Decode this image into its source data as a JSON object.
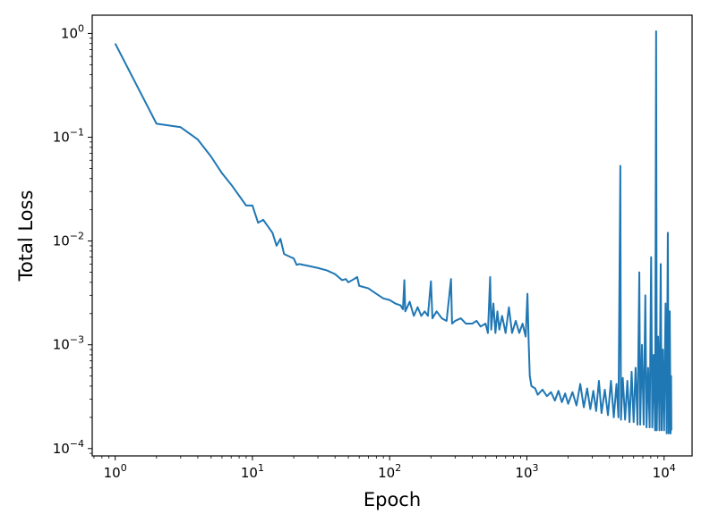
{
  "chart_data": {
    "type": "line",
    "title": "",
    "xlabel": "Epoch",
    "ylabel": "Total Loss",
    "xscale": "log",
    "yscale": "log",
    "xlim": [
      0.68,
      16000
    ],
    "ylim": [
      8.5e-05,
      1.5
    ],
    "grid": false,
    "line_color": "#1f77b4",
    "x_ticks": [
      {
        "value": 1,
        "base": "10",
        "exp": "0"
      },
      {
        "value": 10,
        "base": "10",
        "exp": "1"
      },
      {
        "value": 100,
        "base": "10",
        "exp": "2"
      },
      {
        "value": 1000,
        "base": "10",
        "exp": "3"
      },
      {
        "value": 10000,
        "base": "10",
        "exp": "4"
      }
    ],
    "y_ticks": [
      {
        "value": 1,
        "base": "10",
        "exp": "0"
      },
      {
        "value": 0.1,
        "base": "10",
        "exp": "−1"
      },
      {
        "value": 0.01,
        "base": "10",
        "exp": "−2"
      },
      {
        "value": 0.001,
        "base": "10",
        "exp": "−3"
      },
      {
        "value": 0.0001,
        "base": "10",
        "exp": "−4"
      }
    ],
    "series": [
      {
        "points": [
          [
            1,
            0.8
          ],
          [
            2,
            0.135
          ],
          [
            3,
            0.125
          ],
          [
            4,
            0.095
          ],
          [
            5,
            0.065
          ],
          [
            6,
            0.045
          ],
          [
            7,
            0.035
          ],
          [
            9,
            0.022
          ],
          [
            10,
            0.022
          ],
          [
            11,
            0.015
          ],
          [
            12,
            0.016
          ],
          [
            14,
            0.012
          ],
          [
            15,
            0.009
          ],
          [
            16,
            0.0105
          ],
          [
            17,
            0.0075
          ],
          [
            19,
            0.007
          ],
          [
            20,
            0.0068
          ],
          [
            21,
            0.0059
          ],
          [
            22,
            0.006
          ],
          [
            25,
            0.0058
          ],
          [
            30,
            0.0055
          ],
          [
            35,
            0.0052
          ],
          [
            40,
            0.0048
          ],
          [
            45,
            0.0042
          ],
          [
            48,
            0.0043
          ],
          [
            50,
            0.004
          ],
          [
            55,
            0.0043
          ],
          [
            58,
            0.0045
          ],
          [
            60,
            0.0037
          ],
          [
            70,
            0.0035
          ],
          [
            80,
            0.0031
          ],
          [
            90,
            0.0028
          ],
          [
            100,
            0.0027
          ],
          [
            110,
            0.0025
          ],
          [
            120,
            0.0024
          ],
          [
            125,
            0.0022
          ],
          [
            128,
            0.0042
          ],
          [
            130,
            0.0021
          ],
          [
            140,
            0.0026
          ],
          [
            150,
            0.0019
          ],
          [
            160,
            0.0023
          ],
          [
            170,
            0.0019
          ],
          [
            180,
            0.0021
          ],
          [
            190,
            0.0019
          ],
          [
            200,
            0.0041
          ],
          [
            205,
            0.0018
          ],
          [
            220,
            0.0021
          ],
          [
            240,
            0.0018
          ],
          [
            260,
            0.0017
          ],
          [
            280,
            0.0043
          ],
          [
            285,
            0.0016
          ],
          [
            300,
            0.0017
          ],
          [
            330,
            0.0018
          ],
          [
            360,
            0.0016
          ],
          [
            400,
            0.0016
          ],
          [
            430,
            0.0017
          ],
          [
            460,
            0.0015
          ],
          [
            500,
            0.0016
          ],
          [
            520,
            0.0013
          ],
          [
            540,
            0.0045
          ],
          [
            550,
            0.0014
          ],
          [
            570,
            0.0025
          ],
          [
            590,
            0.0013
          ],
          [
            610,
            0.0021
          ],
          [
            630,
            0.0014
          ],
          [
            660,
            0.0019
          ],
          [
            700,
            0.0013
          ],
          [
            740,
            0.0023
          ],
          [
            780,
            0.0013
          ],
          [
            830,
            0.0017
          ],
          [
            880,
            0.0013
          ],
          [
            930,
            0.0016
          ],
          [
            980,
            0.0012
          ],
          [
            1010,
            0.0031
          ],
          [
            1030,
            0.0011
          ],
          [
            1050,
            0.0005
          ],
          [
            1080,
            0.0004
          ],
          [
            1150,
            0.00038
          ],
          [
            1200,
            0.00033
          ],
          [
            1300,
            0.00037
          ],
          [
            1400,
            0.00032
          ],
          [
            1500,
            0.00035
          ],
          [
            1600,
            0.00029
          ],
          [
            1700,
            0.00036
          ],
          [
            1800,
            0.00028
          ],
          [
            1900,
            0.00034
          ],
          [
            2000,
            0.00027
          ],
          [
            2150,
            0.00035
          ],
          [
            2300,
            0.00026
          ],
          [
            2450,
            0.00042
          ],
          [
            2600,
            0.00025
          ],
          [
            2750,
            0.00038
          ],
          [
            2900,
            0.00024
          ],
          [
            3050,
            0.00036
          ],
          [
            3200,
            0.00023
          ],
          [
            3350,
            0.00045
          ],
          [
            3500,
            0.00022
          ],
          [
            3700,
            0.00037
          ],
          [
            3900,
            0.00021
          ],
          [
            4100,
            0.00045
          ],
          [
            4300,
            0.0002
          ],
          [
            4500,
            0.00042
          ],
          [
            4650,
            0.0002
          ],
          [
            4800,
            0.053
          ],
          [
            4850,
            0.00019
          ],
          [
            5000,
            0.00048
          ],
          [
            5200,
            0.00019
          ],
          [
            5400,
            0.00045
          ],
          [
            5600,
            0.00018
          ],
          [
            5800,
            0.00055
          ],
          [
            6000,
            0.00018
          ],
          [
            6200,
            0.0006
          ],
          [
            6400,
            0.00017
          ],
          [
            6600,
            0.005
          ],
          [
            6700,
            0.00017
          ],
          [
            6900,
            0.001
          ],
          [
            7100,
            0.00017
          ],
          [
            7300,
            0.003
          ],
          [
            7450,
            0.00016
          ],
          [
            7650,
            0.0006
          ],
          [
            7850,
            0.00016
          ],
          [
            8050,
            0.007
          ],
          [
            8200,
            0.00016
          ],
          [
            8400,
            0.0008
          ],
          [
            8600,
            0.00015
          ],
          [
            8750,
            1.05
          ],
          [
            8850,
            0.00015
          ],
          [
            9050,
            0.0012
          ],
          [
            9250,
            0.00015
          ],
          [
            9450,
            0.006
          ],
          [
            9600,
            0.00015
          ],
          [
            9800,
            0.0009
          ],
          [
            10000,
            0.00015
          ],
          [
            10250,
            0.0025
          ],
          [
            10450,
            0.00014
          ],
          [
            10650,
            0.012
          ],
          [
            10800,
            0.00014
          ],
          [
            11000,
            0.0021
          ],
          [
            11150,
            0.00014
          ],
          [
            11250,
            0.0005
          ],
          [
            11300,
            0.00015
          ]
        ]
      }
    ]
  }
}
